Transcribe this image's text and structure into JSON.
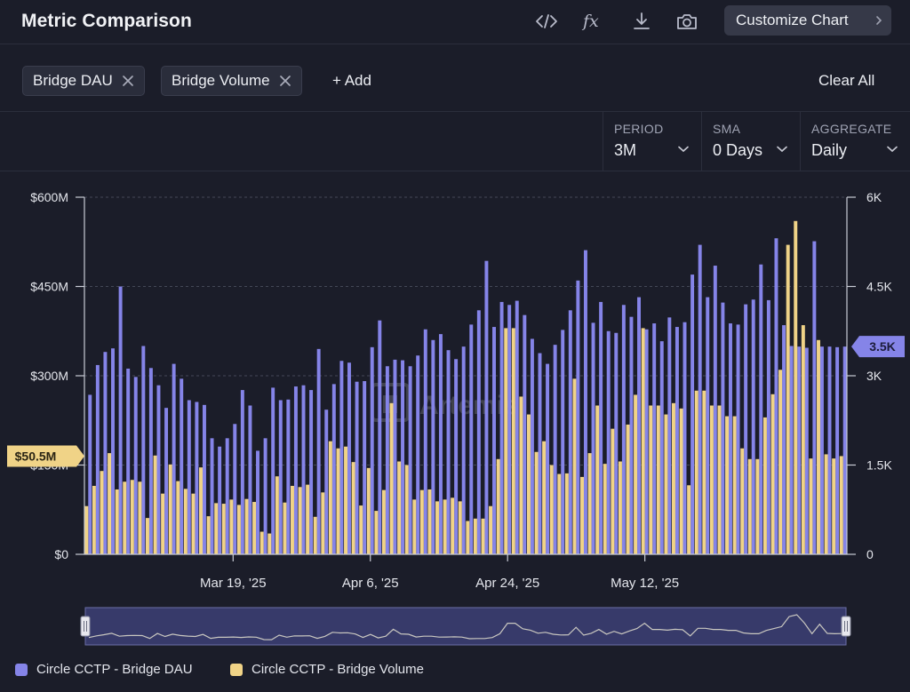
{
  "header": {
    "title": "Metric Comparison",
    "customize_label": "Customize Chart",
    "icons": [
      "code-icon",
      "formula-icon",
      "download-icon",
      "camera-icon"
    ]
  },
  "filters": {
    "chips": [
      {
        "label": "Bridge DAU"
      },
      {
        "label": "Bridge Volume"
      }
    ],
    "add_label": "+ Add",
    "clear_label": "Clear All"
  },
  "controls": {
    "period": {
      "label": "PERIOD",
      "value": "3M"
    },
    "sma": {
      "label": "SMA",
      "value": "0 Days"
    },
    "aggregate": {
      "label": "AGGREGATE",
      "value": "Daily"
    }
  },
  "watermark": "Artemis",
  "colors": {
    "dau": "#8584e8",
    "volume": "#f0d387",
    "background": "#1b1d29",
    "grid": "#444857"
  },
  "chart_data": {
    "type": "bar",
    "y_left": {
      "ticks": [
        "$0",
        "$150M",
        "$300M",
        "$450M",
        "$600M"
      ],
      "range": [
        0,
        600
      ]
    },
    "y_right": {
      "ticks": [
        "0",
        "1.5K",
        "3K",
        "4.5K",
        "6K"
      ],
      "range": [
        0,
        6000
      ]
    },
    "x_ticks": [
      "Mar 19, '25",
      "Apr 6, '25",
      "Apr 24, '25",
      "May 12, '25"
    ],
    "x_tick_index": [
      19,
      37,
      55,
      73
    ],
    "markers": {
      "left": "$50.5M",
      "right": "3.5K"
    },
    "series": [
      {
        "name": "Circle CCTP - Bridge DAU",
        "axis": "right",
        "values": [
          2680,
          3180,
          3400,
          3460,
          4500,
          3120,
          2980,
          3500,
          3130,
          2840,
          2460,
          3200,
          2950,
          2590,
          2560,
          2510,
          1950,
          1810,
          1950,
          2190,
          2760,
          2500,
          1740,
          1950,
          2800,
          2590,
          2600,
          2820,
          2840,
          2760,
          3450,
          2430,
          2860,
          3250,
          3220,
          2900,
          2910,
          3480,
          3930,
          3160,
          3270,
          3260,
          3160,
          3340,
          3780,
          3600,
          3700,
          3430,
          3280,
          3490,
          3860,
          4100,
          4930,
          3820,
          4240,
          4190,
          4260,
          4020,
          3620,
          3380,
          3200,
          3520,
          3770,
          4100,
          4600,
          5110,
          3890,
          4240,
          3750,
          3720,
          4190,
          3990,
          4320,
          3780,
          3880,
          3580,
          3980,
          3820,
          3900,
          4700,
          5200,
          4320,
          4850,
          4230,
          3880,
          3860,
          4200,
          4280,
          4870,
          4270,
          5310,
          3850,
          3500,
          3490,
          3470,
          5260,
          3490,
          3490,
          3480,
          3490
        ]
      },
      {
        "name": "Circle CCTP - Bridge Volume",
        "axis": "left",
        "values": [
          81,
          115,
          140,
          170,
          109,
          122,
          125,
          122,
          61,
          166,
          102,
          151,
          123,
          110,
          102,
          146,
          64,
          86,
          85,
          92,
          83,
          93,
          88,
          38,
          35,
          131,
          87,
          115,
          113,
          117,
          63,
          104,
          190,
          178,
          181,
          155,
          82,
          145,
          73,
          108,
          254,
          156,
          150,
          92,
          108,
          109,
          89,
          92,
          95,
          89,
          56,
          60,
          60,
          81,
          160,
          380,
          380,
          265,
          235,
          172,
          190,
          150,
          135,
          136,
          295,
          130,
          170,
          250,
          152,
          211,
          156,
          218,
          268,
          380,
          250,
          250,
          235,
          254,
          245,
          116,
          275,
          275,
          250,
          250,
          232,
          232,
          178,
          160,
          160,
          230,
          269,
          310,
          520,
          560,
          385,
          161,
          360,
          168,
          161,
          165
        ]
      }
    ]
  },
  "navigator": {
    "range": [
      0,
      1
    ]
  }
}
